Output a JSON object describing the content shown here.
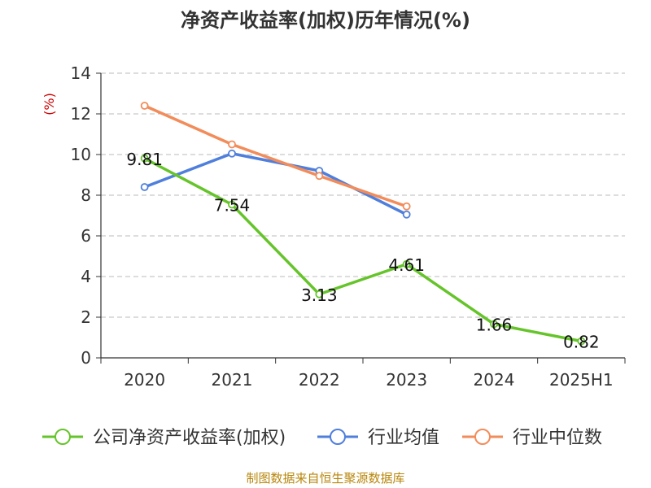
{
  "title": "净资产收益率(加权)历年情况(%)",
  "source": "制图数据来自恒生聚源数据库",
  "chart_data": {
    "type": "line",
    "title": "净资产收益率(加权)历年情况(%)",
    "ylabel": "(%)",
    "ylim": [
      0,
      14
    ],
    "yticks": [
      0,
      2,
      4,
      6,
      8,
      10,
      12,
      14
    ],
    "categories": [
      "2020",
      "2021",
      "2022",
      "2023",
      "2024",
      "2025H1"
    ],
    "grid": true,
    "legend_position": "bottom",
    "series": [
      {
        "name": "公司净资产收益率(加权)",
        "color": "#66c42b",
        "values": [
          9.81,
          7.54,
          3.13,
          4.61,
          1.66,
          0.82
        ],
        "labels": [
          "9.81",
          "7.54",
          "3.13",
          "4.61",
          "1.66",
          "0.82"
        ]
      },
      {
        "name": "行业均值",
        "color": "#4f7fdc",
        "values": [
          8.4,
          10.05,
          9.2,
          7.05,
          null,
          null
        ]
      },
      {
        "name": "行业中位数",
        "color": "#f28c5a",
        "values": [
          12.4,
          10.5,
          8.95,
          7.45,
          null,
          null
        ]
      }
    ]
  }
}
